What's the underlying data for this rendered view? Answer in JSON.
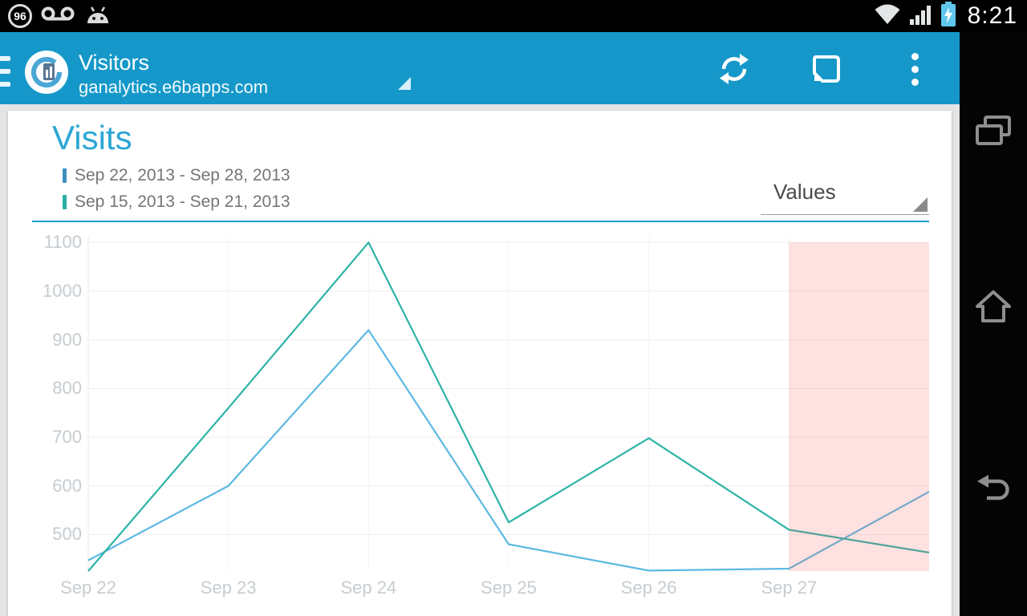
{
  "status_bar": {
    "battery_percent": "96",
    "time": "8:21"
  },
  "action_bar": {
    "title": "Visitors",
    "subtitle": "ganalytics.e6bapps.com"
  },
  "card": {
    "title": "Visits",
    "metric_selector": "Values",
    "legend": [
      {
        "label": "Sep 22, 2013 - Sep 28, 2013",
        "color": "#3f8fc0"
      },
      {
        "label": "Sep 15, 2013 - Sep 21, 2013",
        "color": "#2aaea2"
      }
    ]
  },
  "colors": {
    "action_bar": "#1598c9",
    "accent_blue": "#2ba6d4",
    "divider_blue": "#1d9ed2",
    "highlight_pink": "rgba(244,96,88,0.18)"
  },
  "chart_data": {
    "type": "line",
    "title": "Visits",
    "xlabel": "",
    "ylabel": "",
    "x_tick_labels": [
      "Sep 22",
      "Sep 23",
      "Sep 24",
      "Sep 25",
      "Sep 26",
      "Sep 27"
    ],
    "y_ticks": [
      500,
      600,
      700,
      800,
      900,
      1000,
      1100
    ],
    "ylim": [
      425,
      1112
    ],
    "x_range": [
      0,
      6
    ],
    "grid": true,
    "legend_position": "top-left",
    "series": [
      {
        "name": "Sep 22, 2013 - Sep 28, 2013",
        "color": "#5cb9e2",
        "x": [
          0,
          1,
          2,
          3,
          4,
          5,
          6
        ],
        "values": [
          447,
          600,
          920,
          480,
          426,
          430,
          588
        ]
      },
      {
        "name": "Sep 15, 2013 - Sep 21, 2013",
        "color": "#2cb3a7",
        "x": [
          0,
          1,
          2,
          3,
          4,
          5,
          6
        ],
        "values": [
          425,
          760,
          1100,
          525,
          698,
          510,
          463
        ]
      }
    ],
    "highlight_region": {
      "x_start": 5,
      "x_end": 6,
      "y_top": 1100,
      "color": "rgba(244,96,88,0.18)"
    }
  }
}
